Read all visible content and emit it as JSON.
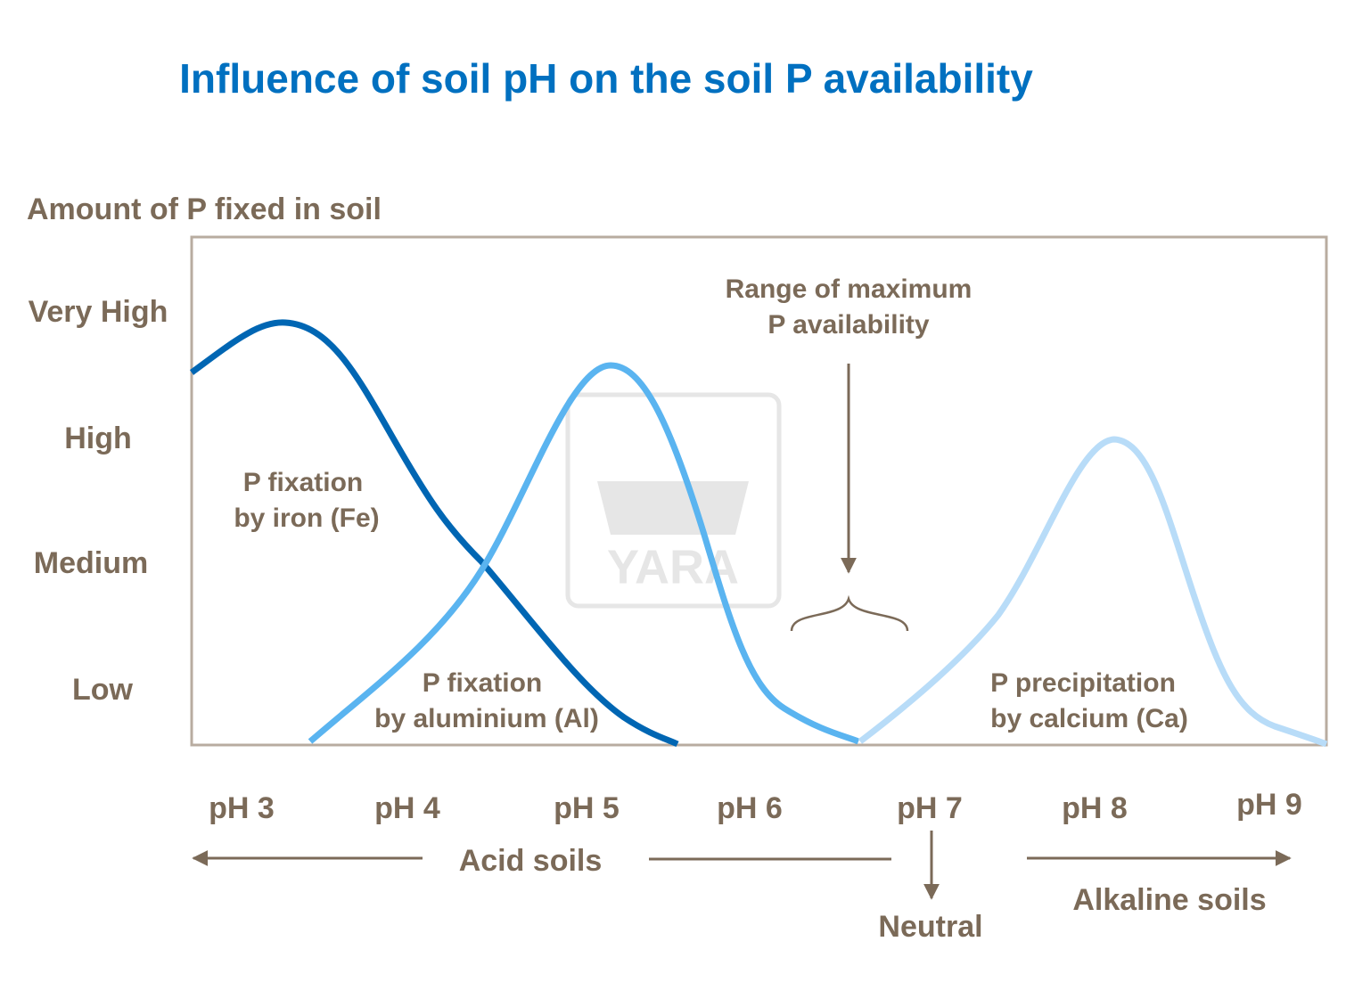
{
  "title": "Influence of soil pH on the soil P availability",
  "y_axis": {
    "label": "Amount of P fixed in soil",
    "levels": [
      "Very High",
      "High",
      "Medium",
      "Low"
    ]
  },
  "x_axis": {
    "labels": [
      "pH 3",
      "pH 4",
      "pH 5",
      "pH 6",
      "pH 7",
      "pH 8",
      "pH 9"
    ]
  },
  "curves": [
    {
      "lines": [
        "P fixation",
        "by iron (Fe)"
      ]
    },
    {
      "lines": [
        "P fixation",
        "by aluminium (Al)"
      ]
    },
    {
      "lines": [
        "P precipitation",
        "by calcium (Ca)"
      ]
    }
  ],
  "annotation": {
    "lines": [
      "Range of maximum",
      "P availability"
    ]
  },
  "soil_types": {
    "acid": "Acid soils",
    "neutral": "Neutral",
    "alkaline": "Alkaline soils"
  },
  "watermark": "YARA"
}
